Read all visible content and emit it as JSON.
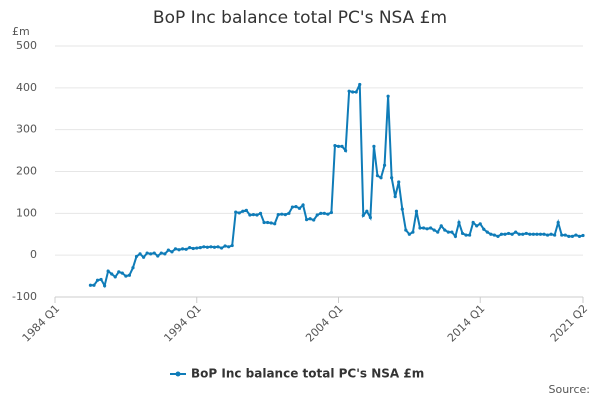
{
  "chart_data": {
    "type": "line",
    "title": "BoP Inc balance total PC's NSA £m",
    "y_unit": "£m",
    "source": "Source:",
    "categories": [
      "1984 Q1",
      null,
      null,
      null,
      null,
      null,
      null,
      null,
      null,
      null,
      null,
      null,
      null,
      null,
      null,
      null,
      null,
      null,
      null,
      null,
      null,
      null,
      null,
      null,
      null,
      null,
      null,
      null,
      null,
      null,
      null,
      null,
      null,
      null,
      null,
      null,
      null,
      null,
      null,
      null,
      "1994 Q1",
      null,
      null,
      null,
      null,
      null,
      null,
      null,
      null,
      null,
      null,
      null,
      null,
      null,
      null,
      null,
      null,
      null,
      null,
      null,
      null,
      null,
      null,
      null,
      null,
      null,
      null,
      null,
      null,
      null,
      null,
      null,
      null,
      null,
      null,
      null,
      null,
      null,
      null,
      null,
      "2004 Q1",
      null,
      null,
      null,
      null,
      null,
      null,
      null,
      null,
      null,
      null,
      null,
      null,
      null,
      null,
      null,
      null,
      null,
      null,
      null,
      null,
      null,
      null,
      null,
      null,
      null,
      null,
      null,
      null,
      null,
      null,
      null,
      null,
      null,
      null,
      null,
      null,
      null,
      null,
      null,
      "2014 Q1",
      null,
      null,
      null,
      null,
      null,
      null,
      null,
      null,
      null,
      null,
      null,
      null,
      null,
      null,
      null,
      null,
      null,
      null,
      null,
      null,
      null,
      null,
      null,
      null,
      null,
      null,
      null,
      null,
      "2021 Q2"
    ],
    "series": [
      {
        "name": "BoP Inc balance total PC's NSA £m",
        "color": "#0f7cb8",
        "values": [
          null,
          null,
          null,
          null,
          null,
          null,
          null,
          null,
          null,
          null,
          -72,
          -72,
          -60,
          -58,
          -73,
          -38,
          -45,
          -52,
          -40,
          -43,
          -50,
          -48,
          -30,
          -3,
          3,
          -5,
          5,
          3,
          5,
          -2,
          5,
          3,
          12,
          8,
          15,
          13,
          15,
          14,
          18,
          16,
          17,
          18,
          20,
          19,
          20,
          19,
          20,
          17,
          22,
          20,
          23,
          103,
          101,
          105,
          107,
          96,
          97,
          96,
          100,
          78,
          78,
          77,
          75,
          97,
          98,
          97,
          100,
          115,
          116,
          112,
          120,
          85,
          87,
          84,
          96,
          100,
          100,
          98,
          102,
          262,
          260,
          260,
          250,
          392,
          390,
          390,
          408,
          95,
          105,
          90,
          260,
          190,
          185,
          215,
          380,
          185,
          140,
          175,
          110,
          60,
          50,
          55,
          105,
          65,
          65,
          63,
          65,
          60,
          55,
          70,
          60,
          55,
          55,
          45,
          78,
          52,
          48,
          48,
          78,
          70,
          75,
          62,
          55,
          50,
          48,
          45,
          50,
          50,
          52,
          50,
          55,
          50,
          50,
          52,
          50,
          50,
          50,
          50,
          50,
          48,
          50,
          48,
          78,
          48,
          48,
          45,
          45,
          48,
          45,
          47
        ]
      }
    ],
    "ylim": [
      -100,
      500
    ],
    "yticks": [
      -100,
      0,
      100,
      200,
      300,
      400,
      500
    ],
    "grid": true
  }
}
